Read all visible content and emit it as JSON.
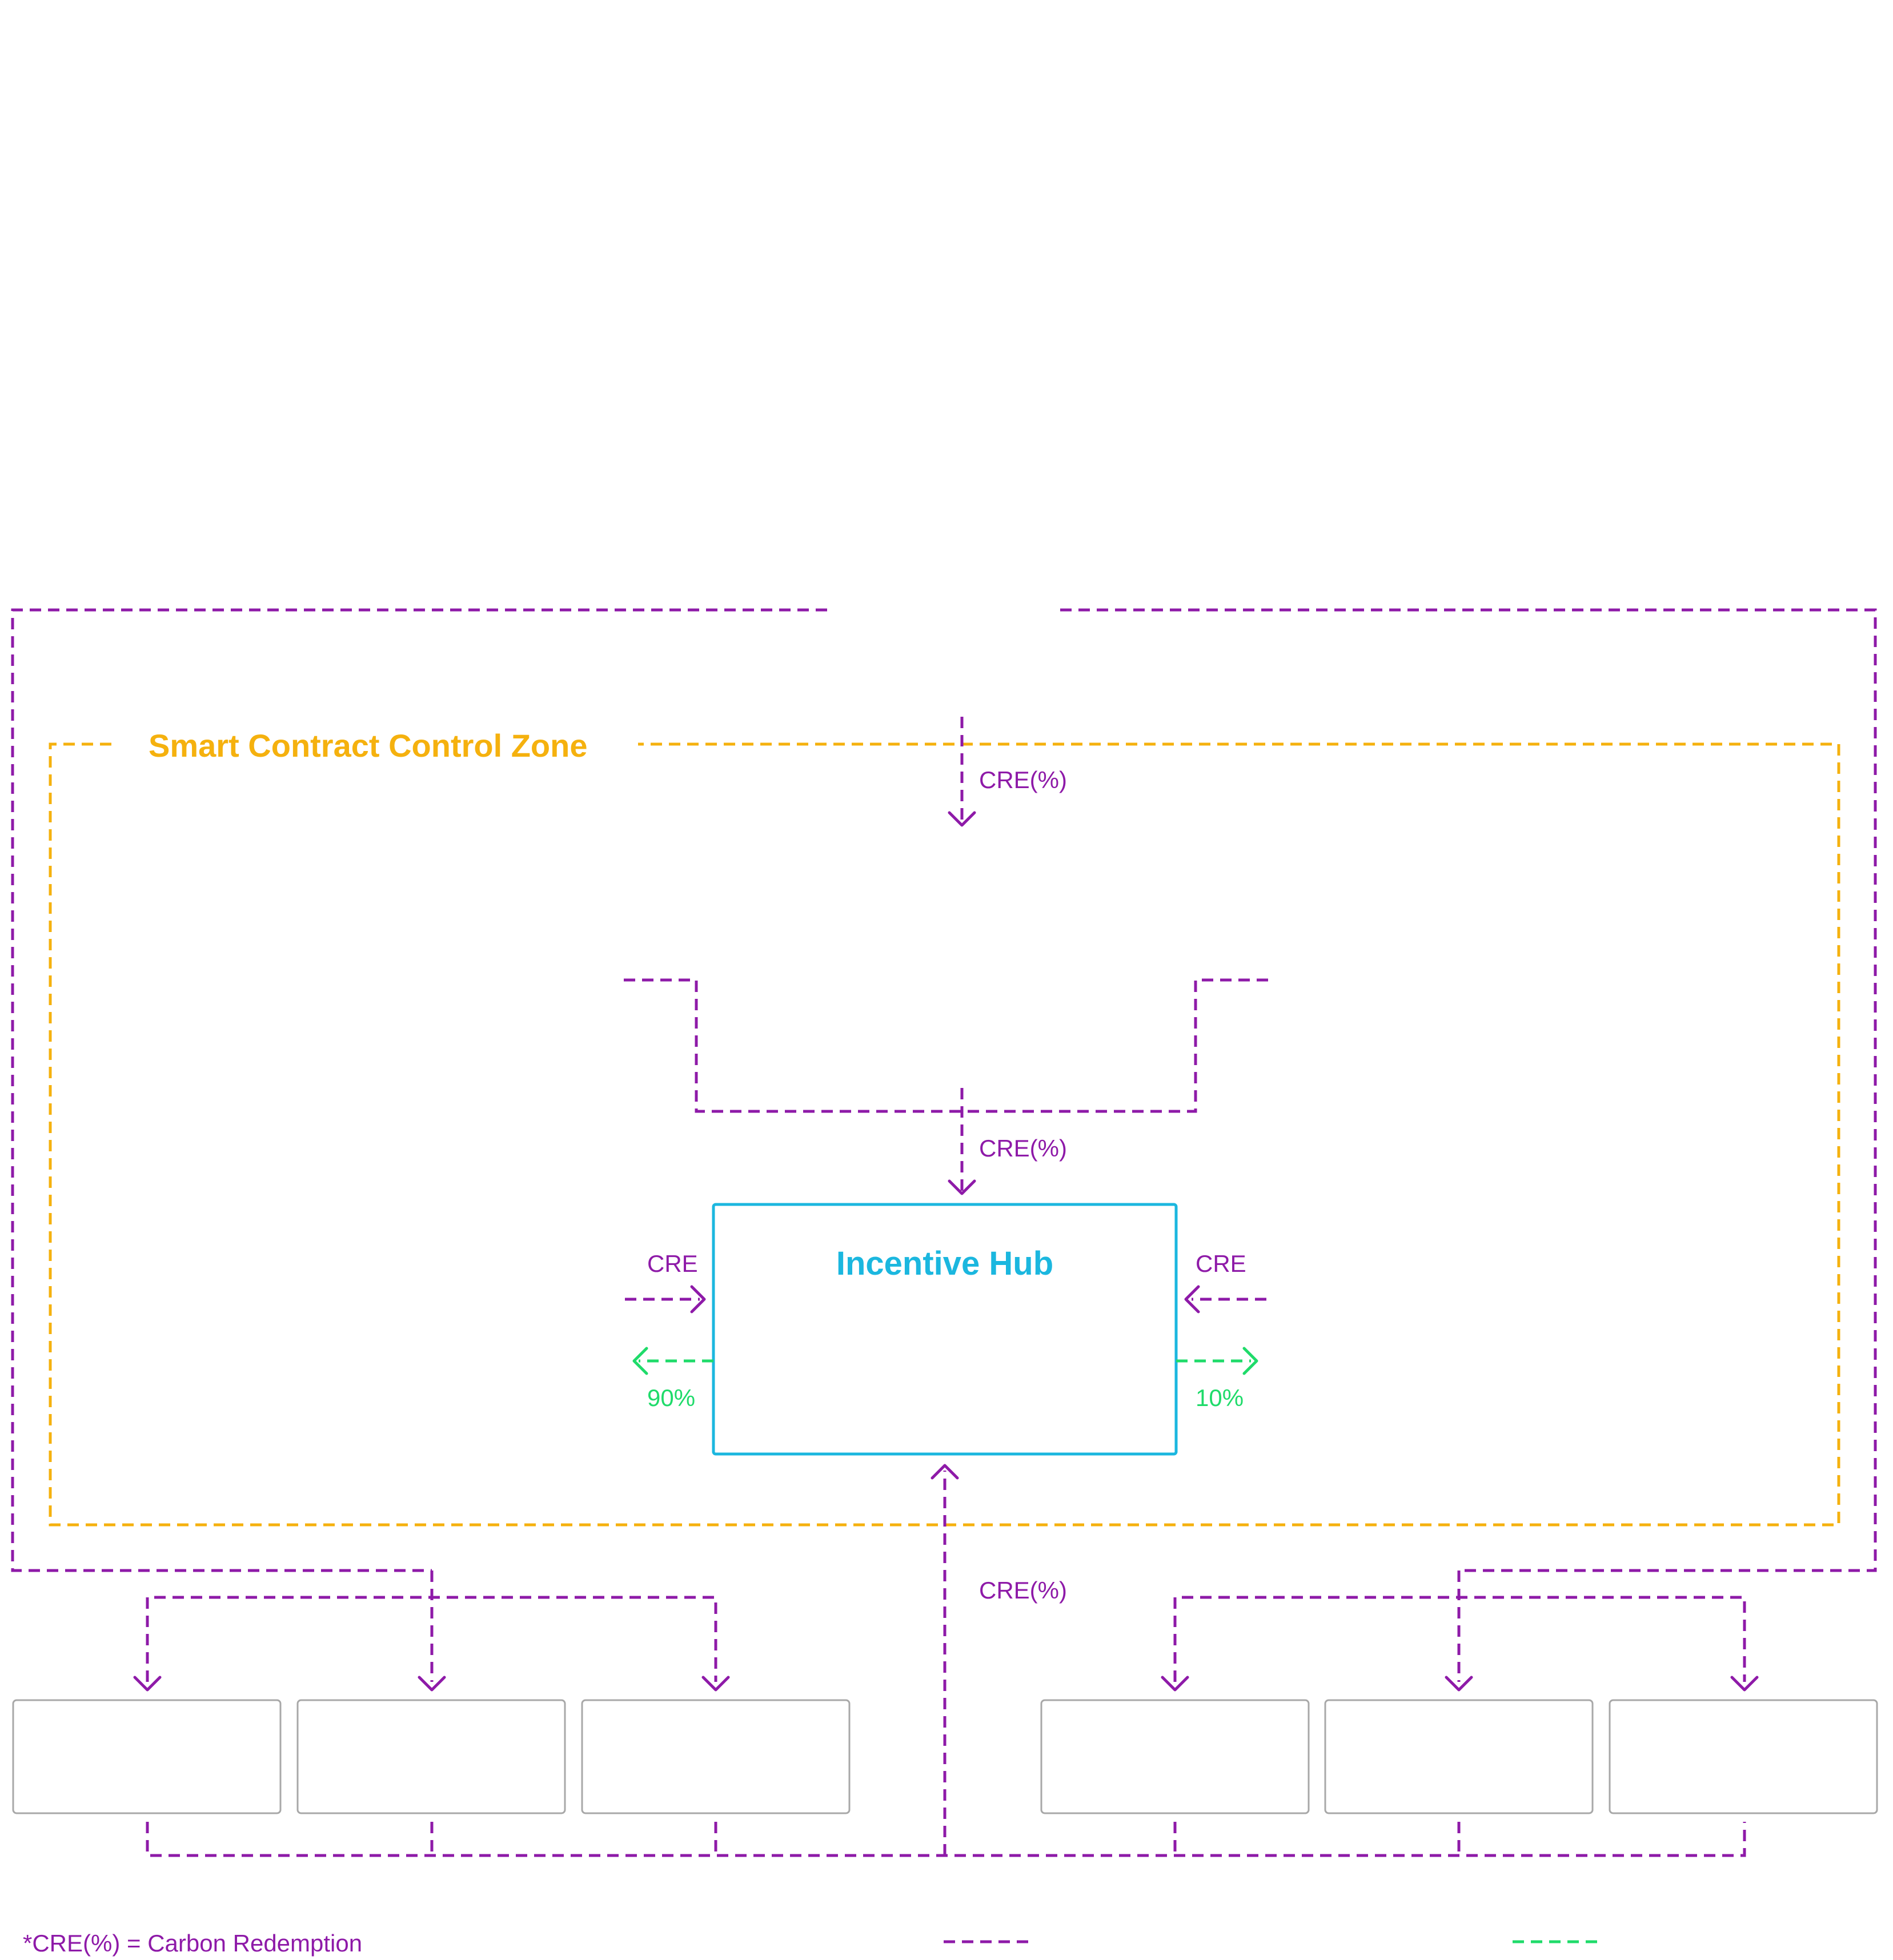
{
  "colors": {
    "flow": "#8E1AA8",
    "split": "#1FDB6A",
    "zone": "#F5B10E",
    "hub": "#1BB7DF",
    "box": "#A8A8A8"
  },
  "zone": {
    "title": "Smart Contract Control Zone"
  },
  "hub": {
    "title": "Incentive Hub"
  },
  "labels": {
    "cre_pct_top": "CRE(%)",
    "cre_pct_mid": "CRE(%)",
    "cre_pct_bottom": "CRE(%)",
    "cre_left": "CRE",
    "cre_right": "CRE",
    "split_left": "90%",
    "split_right": "10%"
  },
  "participant_groups": [
    {
      "group": "left",
      "boxes": [
        "",
        "",
        ""
      ]
    },
    {
      "group": "right",
      "boxes": [
        "",
        "",
        ""
      ]
    }
  ],
  "footnote": "*CRE(%) = Carbon Redemption",
  "legend": [
    {
      "style": "dashed",
      "color": "#8E1AA8",
      "label": ""
    },
    {
      "style": "dashed",
      "color": "#1FDB6A",
      "label": ""
    }
  ]
}
